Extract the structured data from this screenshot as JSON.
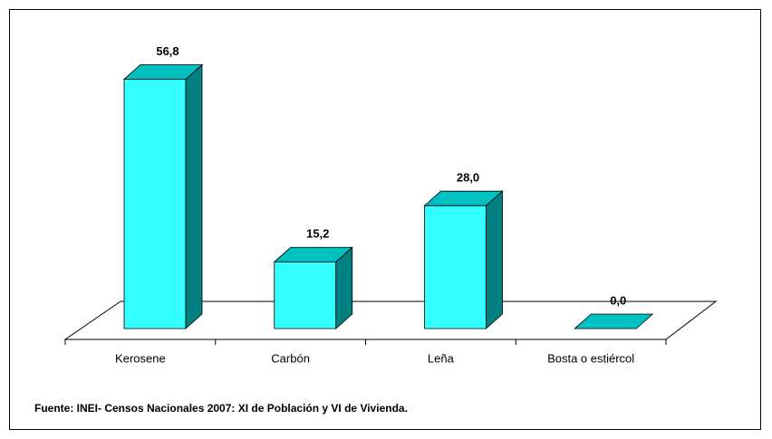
{
  "chart_data": {
    "type": "bar3d",
    "categories": [
      "Kerosene",
      "Carbón",
      "Leña",
      "Bosta o estiércol"
    ],
    "values": [
      56.8,
      15.2,
      28.0,
      0.0
    ],
    "value_labels": [
      "56,8",
      "15,2",
      "28,0",
      "0,0"
    ],
    "color": "#33ffff",
    "side_color": "#008080",
    "top_color": "#00c0c0",
    "source": "Fuente: INEI- Censos Nacionales 2007: XI de Población y VI de Vivienda."
  }
}
